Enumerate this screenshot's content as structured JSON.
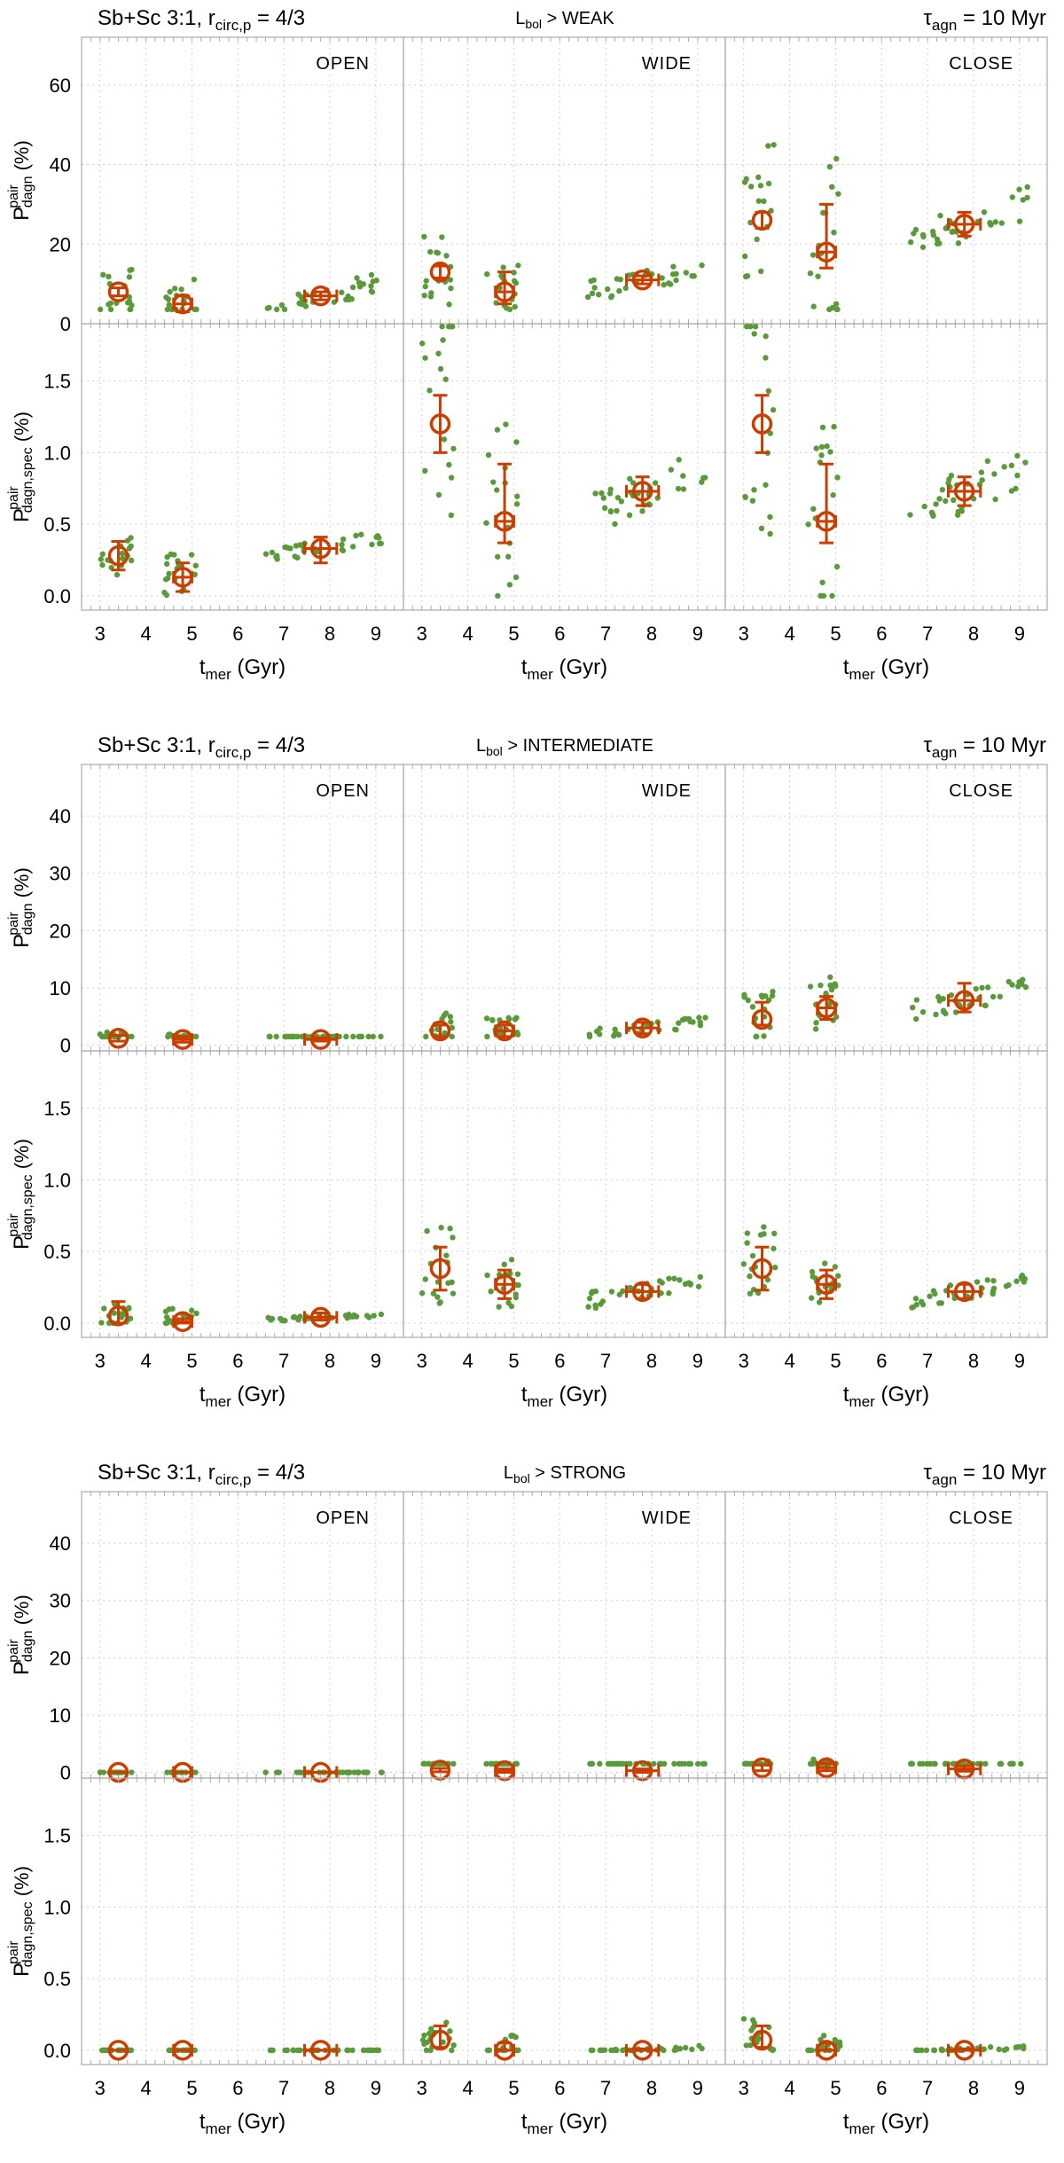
{
  "figure": {
    "x_axis_label": "t",
    "x_axis_label_sub": "mer",
    "x_axis_label_unit": "(Gyr)",
    "y_label_total_main": "P",
    "y_label_total_sup": "pair",
    "y_label_total_sub": "dagn",
    "y_label_spec_main": "P",
    "y_label_spec_sup": "pair",
    "y_label_spec_sub": "dagn,spec",
    "y_label_unit": "(%)"
  },
  "chart_data": [
    {
      "type": "scatter",
      "threshold_prefix": "L",
      "threshold_sub": "bol",
      "threshold_text": " > WEAK",
      "left_title_main": "Sb+Sc 3:1, r",
      "left_title_sub": "circ,p",
      "left_title_tail": " = 4/3",
      "right_title_main": "τ",
      "right_title_sub": "agn",
      "right_title_tail": " = 10 Myr",
      "top_ylim": [
        0,
        72
      ],
      "top_yticks": [
        "0",
        "20",
        "40",
        "60"
      ],
      "bottom_ylim": [
        -0.1,
        1.9
      ],
      "bottom_yticks": [
        "0.0",
        "0.5",
        "1.0",
        "1.5"
      ],
      "xlim": [
        2.6,
        9.6
      ],
      "xticks": [
        "3",
        "4",
        "5",
        "6",
        "7",
        "8",
        "9"
      ],
      "columns": [
        {
          "label": "OPEN",
          "top": {
            "spread": [
              8,
              10,
              9,
              5,
              3
            ],
            "means": [
              {
                "x": 3.4,
                "y": 8,
                "e": [
                  1,
                  1
                ]
              },
              {
                "x": 4.8,
                "y": 5,
                "e": [
                  2,
                  2
                ],
                "ex": 0.2
              },
              {
                "x": 7.8,
                "y": 7,
                "e": [
                  1,
                  1
                ],
                "ex": 0.35
              }
            ]
          },
          "bottom": {
            "spread": [
              0.25,
              0.22,
              0.2,
              0.17,
              0.1
            ],
            "means": [
              {
                "x": 3.4,
                "y": 0.28,
                "e": [
                  0.1,
                  0.1
                ]
              },
              {
                "x": 4.8,
                "y": 0.13,
                "e": [
                  0.1,
                  0.1
                ],
                "ex": 0.2
              },
              {
                "x": 7.8,
                "y": 0.33,
                "e": [
                  0.1,
                  0.08
                ],
                "ex": 0.35
              }
            ]
          }
        },
        {
          "label": "WIDE",
          "top": {
            "spread": [
              13,
              10,
              9,
              7,
              4
            ],
            "means": [
              {
                "x": 3.4,
                "y": 13,
                "e": [
                  1.5,
                  1.5
                ]
              },
              {
                "x": 4.8,
                "y": 8,
                "e": [
                  3,
                  5
                ],
                "ex": 0.2
              },
              {
                "x": 7.8,
                "y": 11,
                "e": [
                  1,
                  1
                ],
                "ex": 0.35
              }
            ]
          },
          "bottom": {
            "spread": [
              1.25,
              0.95,
              0.5,
              0.62,
              0.8
            ],
            "means": [
              {
                "x": 3.4,
                "y": 1.2,
                "e": [
                  0.2,
                  0.2
                ]
              },
              {
                "x": 4.8,
                "y": 0.52,
                "e": [
                  0.15,
                  0.4
                ],
                "ex": 0.2
              },
              {
                "x": 7.8,
                "y": 0.73,
                "e": [
                  0.1,
                  0.1
                ],
                "ex": 0.35
              }
            ]
          }
        },
        {
          "label": "CLOSE",
          "top": {
            "spread": [
              25,
              32,
              16,
              20,
              26
            ],
            "means": [
              {
                "x": 3.4,
                "y": 26,
                "e": [
                  2,
                  2
                ]
              },
              {
                "x": 4.8,
                "y": 18,
                "e": [
                  4,
                  12
                ],
                "ex": 0.2
              },
              {
                "x": 7.8,
                "y": 25,
                "e": [
                  3,
                  3
                ],
                "ex": 0.35
              }
            ]
          },
          "bottom": {
            "spread": [
              1.25,
              0.95,
              0.5,
              0.62,
              0.8
            ],
            "means": [
              {
                "x": 3.4,
                "y": 1.2,
                "e": [
                  0.2,
                  0.2
                ]
              },
              {
                "x": 4.8,
                "y": 0.52,
                "e": [
                  0.15,
                  0.4
                ],
                "ex": 0.2
              },
              {
                "x": 7.8,
                "y": 0.73,
                "e": [
                  0.1,
                  0.1
                ],
                "ex": 0.35
              }
            ]
          }
        }
      ]
    },
    {
      "type": "scatter",
      "threshold_prefix": "L",
      "threshold_sub": "bol",
      "threshold_text": " > INTERMEDIATE",
      "left_title_main": "Sb+Sc 3:1, r",
      "left_title_sub": "circ,p",
      "left_title_tail": " = 4/3",
      "right_title_main": "τ",
      "right_title_sub": "agn",
      "right_title_tail": " = 10 Myr",
      "top_ylim": [
        -1,
        49
      ],
      "top_yticks": [
        "0",
        "10",
        "20",
        "30",
        "40"
      ],
      "bottom_ylim": [
        -0.1,
        1.9
      ],
      "bottom_yticks": [
        "0.0",
        "0.5",
        "1.0",
        "1.5"
      ],
      "xlim": [
        2.6,
        9.6
      ],
      "xticks": [
        "3",
        "4",
        "5",
        "6",
        "7",
        "8",
        "9"
      ],
      "columns": [
        {
          "label": "OPEN",
          "top": {
            "spread": [
              1.5,
              1.2,
              1,
              1,
              1.5
            ],
            "means": [
              {
                "x": 3.4,
                "y": 1.2,
                "e": [
                  0.5,
                  0.5
                ]
              },
              {
                "x": 4.8,
                "y": 1,
                "e": [
                  0.5,
                  0.5
                ],
                "ex": 0.2
              },
              {
                "x": 7.8,
                "y": 1,
                "e": [
                  0.3,
                  0.3
                ],
                "ex": 0.35
              }
            ]
          },
          "bottom": {
            "spread": [
              0.15,
              0.12,
              0.05,
              0.07,
              0.1
            ],
            "means": [
              {
                "x": 3.4,
                "y": 0.05,
                "e": [
                  0.05,
                  0.1
                ]
              },
              {
                "x": 4.8,
                "y": 0.01,
                "e": [
                  0.01,
                  0.02
                ],
                "ex": 0.2
              },
              {
                "x": 7.8,
                "y": 0.04,
                "e": [
                  0.02,
                  0.03
                ],
                "ex": 0.35
              }
            ]
          }
        },
        {
          "label": "WIDE",
          "top": {
            "spread": [
              4,
              3,
              3,
              3,
              4
            ],
            "means": [
              {
                "x": 3.4,
                "y": 2.5,
                "e": [
                  1,
                  1
                ]
              },
              {
                "x": 4.8,
                "y": 2.5,
                "e": [
                  1,
                  1
                ],
                "ex": 0.2
              },
              {
                "x": 7.8,
                "y": 3,
                "e": [
                  1,
                  1
                ],
                "ex": 0.35
              }
            ]
          },
          "bottom": {
            "spread": [
              0.4,
              0.25,
              0.2,
              0.25,
              0.2
            ],
            "means": [
              {
                "x": 3.4,
                "y": 0.38,
                "e": [
                  0.15,
                  0.15
                ]
              },
              {
                "x": 4.8,
                "y": 0.27,
                "e": [
                  0.1,
                  0.1
                ],
                "ex": 0.2
              },
              {
                "x": 7.8,
                "y": 0.22,
                "e": [
                  0.05,
                  0.05
                ],
                "ex": 0.35
              }
            ]
          }
        },
        {
          "label": "CLOSE",
          "top": {
            "spread": [
              7,
              7,
              6,
              8,
              10
            ],
            "means": [
              {
                "x": 3.4,
                "y": 4.5,
                "e": [
                  1,
                  3
                ]
              },
              {
                "x": 4.8,
                "y": 6.5,
                "e": [
                  2,
                  2
                ],
                "ex": 0.2
              },
              {
                "x": 7.8,
                "y": 7.8,
                "e": [
                  2,
                  3
                ],
                "ex": 0.35
              }
            ]
          },
          "bottom": {
            "spread": [
              0.4,
              0.25,
              0.2,
              0.25,
              0.2
            ],
            "means": [
              {
                "x": 3.4,
                "y": 0.38,
                "e": [
                  0.15,
                  0.15
                ]
              },
              {
                "x": 4.8,
                "y": 0.27,
                "e": [
                  0.1,
                  0.1
                ],
                "ex": 0.2
              },
              {
                "x": 7.8,
                "y": 0.22,
                "e": [
                  0.05,
                  0.05
                ],
                "ex": 0.35
              }
            ]
          }
        }
      ]
    },
    {
      "type": "scatter",
      "threshold_prefix": "L",
      "threshold_sub": "bol",
      "threshold_text": " > STRONG",
      "left_title_main": "Sb+Sc 3:1, r",
      "left_title_sub": "circ,p",
      "left_title_tail": " = 4/3",
      "right_title_main": "τ",
      "right_title_sub": "agn",
      "right_title_tail": " = 10 Myr",
      "top_ylim": [
        -1,
        49
      ],
      "top_yticks": [
        "0",
        "10",
        "20",
        "30",
        "40"
      ],
      "bottom_ylim": [
        -0.1,
        1.9
      ],
      "bottom_yticks": [
        "0.0",
        "0.5",
        "1.0",
        "1.5"
      ],
      "xlim": [
        2.6,
        9.6
      ],
      "xticks": [
        "3",
        "4",
        "5",
        "6",
        "7",
        "8",
        "9"
      ],
      "columns": [
        {
          "label": "OPEN",
          "top": {
            "spread": [
              0,
              0,
              0,
              0,
              0
            ],
            "means": [
              {
                "x": 3.4,
                "y": 0,
                "e": [
                  0,
                  0
                ]
              },
              {
                "x": 4.8,
                "y": 0,
                "e": [
                  0,
                  0
                ],
                "ex": 0.2
              },
              {
                "x": 7.8,
                "y": 0,
                "e": [
                  0,
                  0
                ],
                "ex": 0.35
              }
            ]
          },
          "bottom": {
            "spread": [
              0,
              0,
              0,
              0,
              0
            ],
            "means": [
              {
                "x": 3.4,
                "y": 0,
                "e": [
                  0,
                  0
                ]
              },
              {
                "x": 4.8,
                "y": 0,
                "e": [
                  0,
                  0
                ],
                "ex": 0.2
              },
              {
                "x": 7.8,
                "y": 0,
                "e": [
                  0,
                  0
                ],
                "ex": 0.35
              }
            ]
          }
        },
        {
          "label": "WIDE",
          "top": {
            "spread": [
              0.8,
              1,
              0.6,
              0.8,
              0.8
            ],
            "means": [
              {
                "x": 3.4,
                "y": 0.4,
                "e": [
                  0.3,
                  0.3
                ]
              },
              {
                "x": 4.8,
                "y": 0.3,
                "e": [
                  0.3,
                  0.3
                ],
                "ex": 0.2
              },
              {
                "x": 7.8,
                "y": 0.3,
                "e": [
                  0.3,
                  0.3
                ],
                "ex": 0.35
              }
            ]
          },
          "bottom": {
            "spread": [
              0.2,
              0.15,
              0.05,
              0.04,
              0.02
            ],
            "means": [
              {
                "x": 3.4,
                "y": 0.07,
                "e": [
                  0.05,
                  0.1
                ]
              },
              {
                "x": 4.8,
                "y": 0,
                "e": [
                  0,
                  0.05
                ],
                "ex": 0.2
              },
              {
                "x": 7.8,
                "y": 0,
                "e": [
                  0,
                  0.01
                ],
                "ex": 0.35
              }
            ]
          }
        },
        {
          "label": "CLOSE",
          "top": {
            "spread": [
              1.5,
              2,
              1.5,
              2,
              2
            ],
            "means": [
              {
                "x": 3.4,
                "y": 0.8,
                "e": [
                  0.5,
                  0.5
                ]
              },
              {
                "x": 4.8,
                "y": 0.8,
                "e": [
                  0.5,
                  0.8
                ],
                "ex": 0.2
              },
              {
                "x": 7.8,
                "y": 0.6,
                "e": [
                  0.4,
                  0.5
                ],
                "ex": 0.35
              }
            ]
          },
          "bottom": {
            "spread": [
              0.2,
              0.15,
              0.05,
              0.04,
              0.02
            ],
            "means": [
              {
                "x": 3.4,
                "y": 0.07,
                "e": [
                  0.05,
                  0.1
                ]
              },
              {
                "x": 4.8,
                "y": 0,
                "e": [
                  0,
                  0.05
                ],
                "ex": 0.2
              },
              {
                "x": 7.8,
                "y": 0,
                "e": [
                  0,
                  0.01
                ],
                "ex": 0.35
              }
            ]
          }
        }
      ]
    }
  ]
}
